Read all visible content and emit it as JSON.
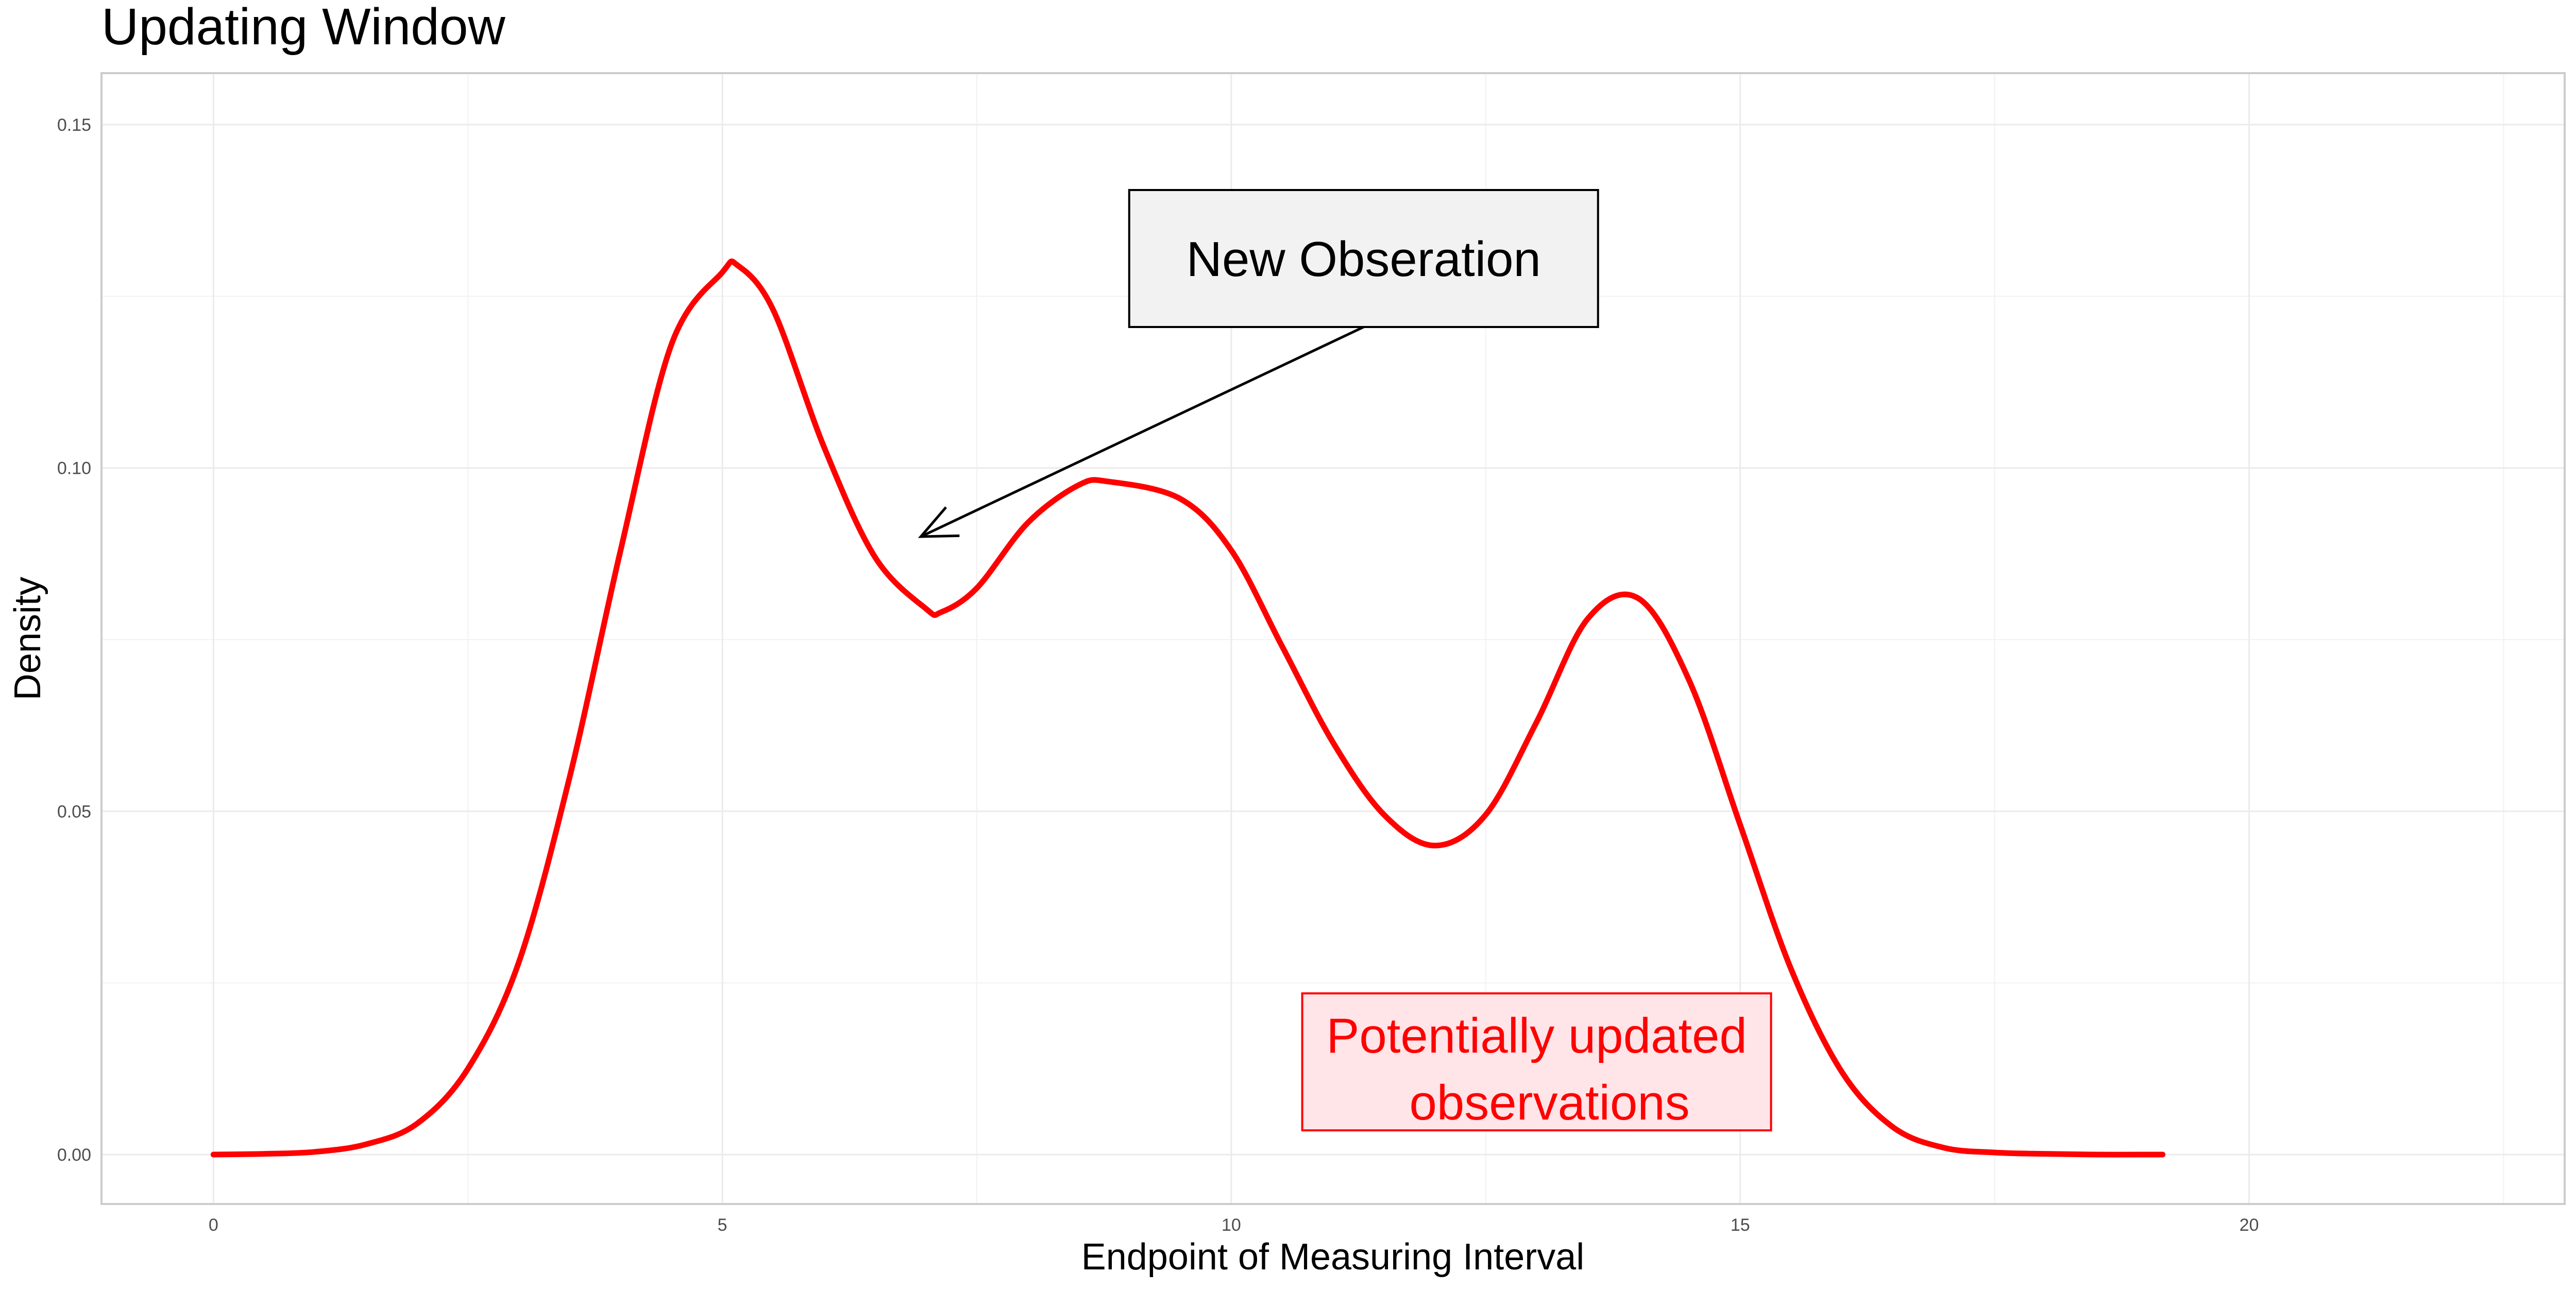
{
  "chart_data": {
    "type": "line",
    "title": "Updating Window",
    "xlabel": "Endpoint of Measuring Interval",
    "ylabel": "Density",
    "xlim": [
      -1.1,
      23.1
    ],
    "ylim": [
      -0.0072,
      0.1575
    ],
    "x_ticks": [
      0,
      5,
      10,
      15,
      20
    ],
    "y_ticks": [
      0.0,
      0.05,
      0.1,
      0.15
    ],
    "x_tick_labels": [
      "0",
      "5",
      "10",
      "15",
      "20"
    ],
    "y_tick_labels": [
      "0.00",
      "0.05",
      "0.10",
      "0.15"
    ],
    "grid": true,
    "series": [
      {
        "color": "#ff0000",
        "x": [
          0,
          0.5,
          1.0,
          1.5,
          2.0,
          2.5,
          3.0,
          3.5,
          4.0,
          4.5,
          5.0,
          5.15,
          5.5,
          6.0,
          6.5,
          7.0,
          7.15,
          7.5,
          8.0,
          8.5,
          8.8,
          9.5,
          10.0,
          10.5,
          11.0,
          11.5,
          12.0,
          12.5,
          13.0,
          13.5,
          14.0,
          14.5,
          15.0,
          15.5,
          16.0,
          16.5,
          17.0,
          17.5,
          18.0,
          18.5,
          19.0,
          19.15
        ],
        "values": [
          0.0,
          0.0001,
          0.0004,
          0.0015,
          0.0045,
          0.0125,
          0.028,
          0.055,
          0.088,
          0.118,
          0.1285,
          0.1295,
          0.123,
          0.103,
          0.087,
          0.0795,
          0.079,
          0.0825,
          0.092,
          0.0975,
          0.098,
          0.0955,
          0.088,
          0.074,
          0.06,
          0.0495,
          0.045,
          0.0495,
          0.063,
          0.078,
          0.081,
          0.069,
          0.048,
          0.027,
          0.012,
          0.004,
          0.001,
          0.0003,
          0.0001,
          0.0,
          0.0,
          0.0
        ]
      }
    ],
    "annotations": [
      {
        "text": "New Obseration",
        "x": 11.3,
        "y": 0.1305,
        "box_color": "#f2f2f2",
        "text_color": "#000000",
        "arrow_to": [
          6.95,
          0.09
        ]
      },
      {
        "text_lines": [
          "Potentially updated",
          "observations"
        ],
        "x": 13.0,
        "y": 0.0135,
        "box_color": "#ffe4e8",
        "text_color": "#ff0000",
        "border_color": "#ff0000"
      }
    ]
  }
}
